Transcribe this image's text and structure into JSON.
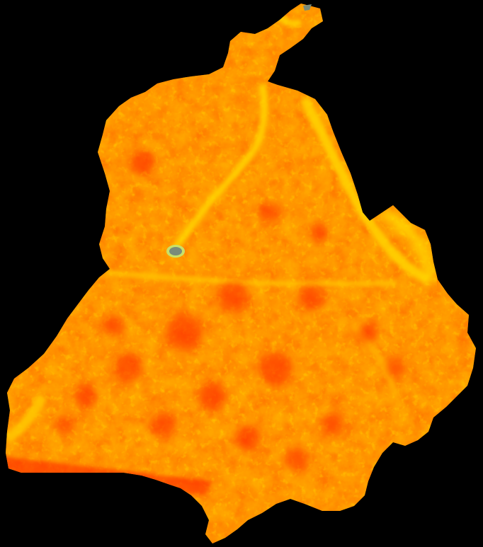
{
  "map": {
    "background_color": "#000000",
    "palette": {
      "low": "#ff1a00",
      "mid_low": "#ff4500",
      "mid": "#ff7a00",
      "mid_high": "#ffa800",
      "high": "#ffd400",
      "peak": "#e6ff00",
      "water": "#7a8b7a",
      "water_edge": "#c8e06a"
    },
    "features": {
      "region": "raster-region-icon",
      "water_body": "lake-icon"
    }
  }
}
